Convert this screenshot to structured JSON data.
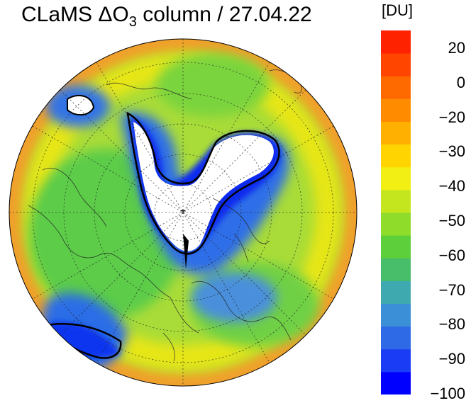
{
  "title": {
    "prefix": "CLaMS ",
    "delta": "ΔO",
    "subscript": "3",
    "suffix": " column / 27.04.22"
  },
  "colorbar": {
    "unit": "[DU]",
    "tick_labels": [
      "20",
      "0",
      "−20",
      "−30",
      "−40",
      "−50",
      "−60",
      "−70",
      "−80",
      "−90",
      "−100"
    ],
    "colors": [
      "#0000ff",
      "#1a3cf5",
      "#2f6ae6",
      "#3b8fd6",
      "#3fa9b0",
      "#48bd6a",
      "#5ccf3a",
      "#8fdc2a",
      "#c4e61e",
      "#f2ef14",
      "#ffd400",
      "#ffb000",
      "#ff8c00",
      "#ff6a00",
      "#ff4500",
      "#ff2200"
    ]
  },
  "map": {
    "projection": "polar-stereographic-north",
    "pole_marker": "*",
    "background_color": "#a7dc3a"
  }
}
